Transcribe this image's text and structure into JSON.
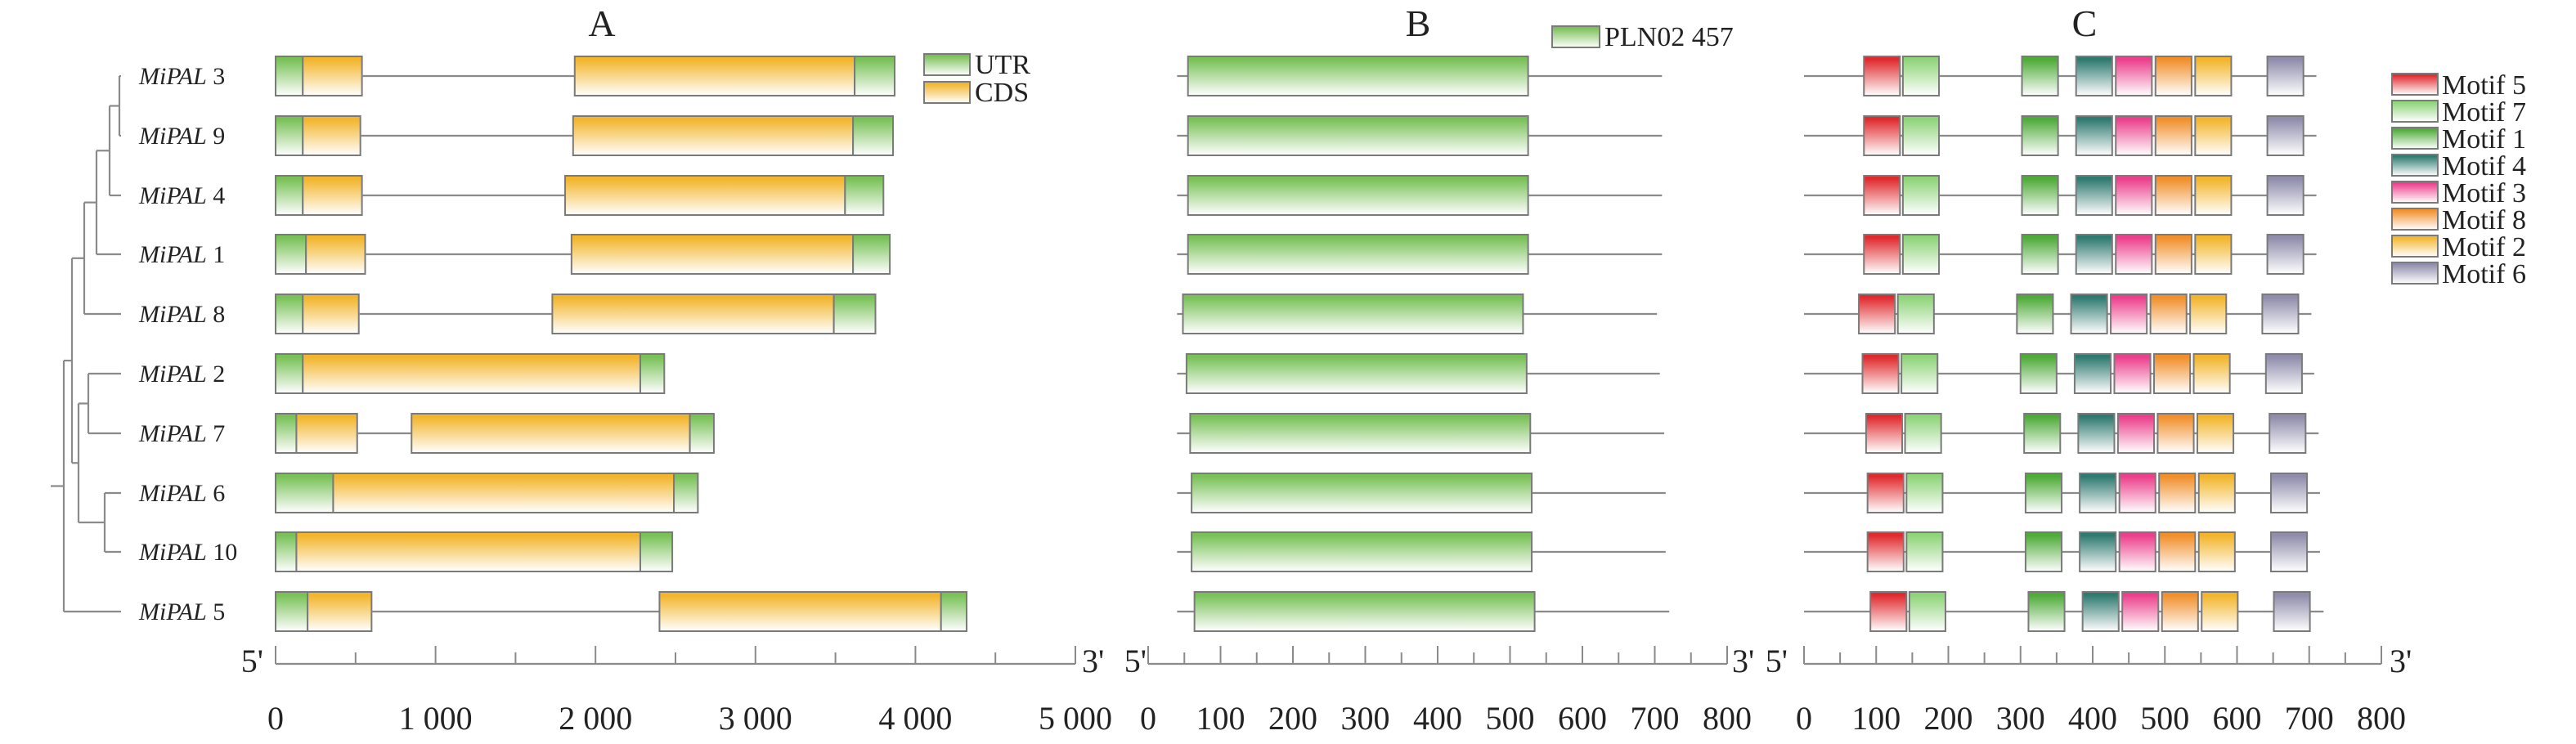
{
  "panels": [
    {
      "id": "A",
      "letter": "A"
    },
    {
      "id": "B",
      "letter": "B"
    },
    {
      "id": "C",
      "letter": "C"
    }
  ],
  "gene_prefix": "MiPAL",
  "genes": [
    "3",
    "9",
    "4",
    "1",
    "8",
    "2",
    "7",
    "6",
    "10",
    "5"
  ],
  "end_labels": {
    "five": "5'",
    "three": "3'"
  },
  "panel_a": {
    "legend": [
      {
        "key": "utr",
        "label": "UTR"
      },
      {
        "key": "cds",
        "label": "CDS"
      }
    ],
    "axis": {
      "min": 0,
      "max": 5000,
      "major_step": 1000,
      "minor_step": 500,
      "tick_labels": [
        "0",
        "1 000",
        "2 000",
        "3 000",
        "4 000",
        "5 000"
      ]
    },
    "rows": [
      {
        "gene": "3",
        "segments": [
          [
            "utr",
            0,
            170
          ],
          [
            "cds",
            170,
            540
          ],
          [
            "intron",
            540,
            1870
          ],
          [
            "cds",
            1870,
            3620
          ],
          [
            "utr",
            3620,
            3870
          ]
        ]
      },
      {
        "gene": "9",
        "segments": [
          [
            "utr",
            0,
            170
          ],
          [
            "cds",
            170,
            530
          ],
          [
            "intron",
            530,
            1860
          ],
          [
            "cds",
            1860,
            3610
          ],
          [
            "utr",
            3610,
            3860
          ]
        ]
      },
      {
        "gene": "4",
        "segments": [
          [
            "utr",
            0,
            170
          ],
          [
            "cds",
            170,
            540
          ],
          [
            "intron",
            540,
            1810
          ],
          [
            "cds",
            1810,
            3560
          ],
          [
            "utr",
            3560,
            3800
          ]
        ]
      },
      {
        "gene": "1",
        "segments": [
          [
            "utr",
            0,
            190
          ],
          [
            "cds",
            190,
            560
          ],
          [
            "intron",
            560,
            1850
          ],
          [
            "cds",
            1850,
            3610
          ],
          [
            "utr",
            3610,
            3840
          ]
        ]
      },
      {
        "gene": "8",
        "segments": [
          [
            "utr",
            0,
            170
          ],
          [
            "cds",
            170,
            520
          ],
          [
            "intron",
            520,
            1730
          ],
          [
            "cds",
            1730,
            3490
          ],
          [
            "utr",
            3490,
            3750
          ]
        ]
      },
      {
        "gene": "2",
        "segments": [
          [
            "utr",
            0,
            170
          ],
          [
            "cds",
            170,
            2280
          ],
          [
            "utr",
            2280,
            2430
          ]
        ]
      },
      {
        "gene": "7",
        "segments": [
          [
            "utr",
            0,
            130
          ],
          [
            "cds",
            130,
            510
          ],
          [
            "intron",
            510,
            850
          ],
          [
            "cds",
            850,
            2590
          ],
          [
            "utr",
            2590,
            2740
          ]
        ]
      },
      {
        "gene": "6",
        "segments": [
          [
            "utr",
            0,
            360
          ],
          [
            "cds",
            360,
            2490
          ],
          [
            "utr",
            2490,
            2640
          ]
        ]
      },
      {
        "gene": "10",
        "segments": [
          [
            "utr",
            0,
            130
          ],
          [
            "cds",
            130,
            2280
          ],
          [
            "utr",
            2280,
            2480
          ]
        ]
      },
      {
        "gene": "5",
        "segments": [
          [
            "utr",
            0,
            200
          ],
          [
            "cds",
            200,
            600
          ],
          [
            "intron",
            600,
            2400
          ],
          [
            "cds",
            2400,
            4160
          ],
          [
            "utr",
            4160,
            4320
          ]
        ]
      }
    ]
  },
  "panel_b": {
    "legend": [
      {
        "key": "pln",
        "label": "PLN02 457"
      }
    ],
    "axis": {
      "min": 0,
      "max": 800,
      "major_step": 100,
      "minor_step": 50,
      "tick_labels": [
        "0",
        "100",
        "200",
        "300",
        "400",
        "500",
        "600",
        "700",
        "800"
      ]
    },
    "rows": [
      {
        "gene": "3",
        "length": 710,
        "domain": [
          55,
          525
        ]
      },
      {
        "gene": "9",
        "length": 710,
        "domain": [
          55,
          525
        ]
      },
      {
        "gene": "4",
        "length": 710,
        "domain": [
          55,
          525
        ]
      },
      {
        "gene": "1",
        "length": 710,
        "domain": [
          55,
          525
        ]
      },
      {
        "gene": "8",
        "length": 703,
        "domain": [
          48,
          518
        ]
      },
      {
        "gene": "2",
        "length": 707,
        "domain": [
          53,
          523
        ]
      },
      {
        "gene": "7",
        "length": 713,
        "domain": [
          58,
          528
        ]
      },
      {
        "gene": "6",
        "length": 715,
        "domain": [
          60,
          530
        ]
      },
      {
        "gene": "10",
        "length": 715,
        "domain": [
          60,
          530
        ]
      },
      {
        "gene": "5",
        "length": 720,
        "domain": [
          64,
          534
        ]
      }
    ]
  },
  "panel_c": {
    "axis": {
      "min": 0,
      "max": 800,
      "major_step": 100,
      "minor_step": 50,
      "tick_labels": [
        "0",
        "100",
        "200",
        "300",
        "400",
        "500",
        "600",
        "700",
        "800"
      ]
    },
    "motif_len": 50,
    "legend": [
      {
        "motif": "5",
        "label": "Motif 5"
      },
      {
        "motif": "7",
        "label": "Motif 7"
      },
      {
        "motif": "1",
        "label": "Motif 1"
      },
      {
        "motif": "4",
        "label": "Motif 4"
      },
      {
        "motif": "3",
        "label": "Motif 3"
      },
      {
        "motif": "8",
        "label": "Motif 8"
      },
      {
        "motif": "2",
        "label": "Motif 2"
      },
      {
        "motif": "6",
        "label": "Motif 6"
      }
    ],
    "order": [
      "5",
      "7",
      "1",
      "4",
      "3",
      "8",
      "2",
      "6"
    ],
    "rows": [
      {
        "gene": "3",
        "length": 710,
        "starts": [
          83,
          137,
          302,
          377,
          432,
          487,
          542,
          642
        ]
      },
      {
        "gene": "9",
        "length": 710,
        "starts": [
          83,
          137,
          302,
          377,
          432,
          487,
          542,
          642
        ]
      },
      {
        "gene": "4",
        "length": 710,
        "starts": [
          83,
          137,
          302,
          377,
          432,
          487,
          542,
          642
        ]
      },
      {
        "gene": "1",
        "length": 710,
        "starts": [
          83,
          137,
          302,
          377,
          432,
          487,
          542,
          642
        ]
      },
      {
        "gene": "8",
        "length": 703,
        "starts": [
          76,
          130,
          295,
          370,
          425,
          480,
          535,
          635
        ]
      },
      {
        "gene": "2",
        "length": 707,
        "starts": [
          81,
          135,
          300,
          375,
          430,
          485,
          540,
          640
        ]
      },
      {
        "gene": "7",
        "length": 713,
        "starts": [
          86,
          140,
          305,
          380,
          435,
          490,
          545,
          645
        ]
      },
      {
        "gene": "6",
        "length": 715,
        "starts": [
          88,
          142,
          307,
          382,
          437,
          492,
          547,
          647
        ]
      },
      {
        "gene": "10",
        "length": 715,
        "starts": [
          88,
          142,
          307,
          382,
          437,
          492,
          547,
          647
        ]
      },
      {
        "gene": "5",
        "length": 720,
        "starts": [
          92,
          146,
          311,
          386,
          441,
          496,
          551,
          651
        ]
      }
    ]
  },
  "colors": {
    "utr": [
      "#79c157",
      "#ffffff"
    ],
    "cds": [
      "#f2b52b",
      "#ffffff"
    ],
    "pln": [
      "#79c157",
      "#ffffff"
    ],
    "motif_5": [
      "#e02a2e",
      "#ffffff"
    ],
    "motif_7": [
      "#8fd479",
      "#ffffff"
    ],
    "motif_1": [
      "#4eab38",
      "#ffffff"
    ],
    "motif_4": [
      "#2e7a70",
      "#ffffff"
    ],
    "motif_3": [
      "#ec3f8c",
      "#ffffff"
    ],
    "motif_8": [
      "#f18f2b",
      "#ffffff"
    ],
    "motif_2": [
      "#f2b52b",
      "#ffffff"
    ],
    "motif_6": [
      "#8f8dab",
      "#ffffff"
    ],
    "line": "#8a8a8a",
    "box_stroke": "#7a7a7a"
  },
  "tree": {
    "structure": [
      [
        [
          [
            [
              [
                "3",
                "9"
              ],
              "4"
            ],
            "1"
          ],
          "8"
        ],
        [
          [
            "2",
            "7"
          ],
          [
            "6",
            "10"
          ]
        ]
      ],
      "5"
    ]
  }
}
